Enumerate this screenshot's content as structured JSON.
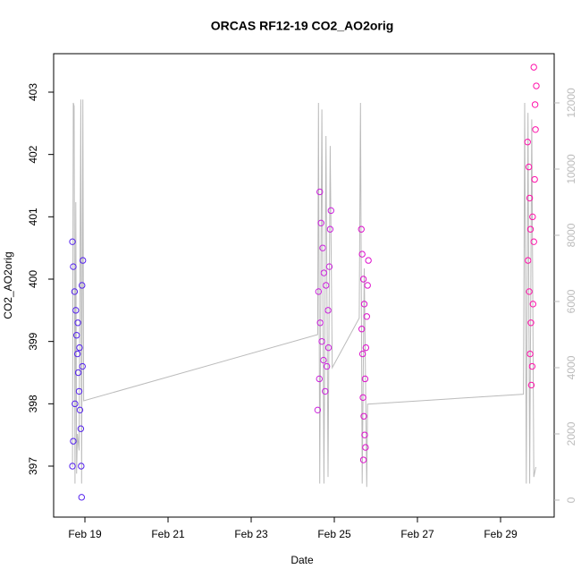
{
  "chart_data": {
    "type": "scatter",
    "title": "ORCAS RF12-19 CO2_AO2orig",
    "xlabel": "Date",
    "ylabel": "CO2_AO2orig",
    "xlim": [
      18.247,
      30.29
    ],
    "ylim": [
      396.182,
      403.617
    ],
    "y2lim": [
      -514,
      13486
    ],
    "xticks": [
      {
        "value": 19,
        "label": "Feb 19"
      },
      {
        "value": 21,
        "label": "Feb 21"
      },
      {
        "value": 23,
        "label": "Feb 23"
      },
      {
        "value": 25,
        "label": "Feb 25"
      },
      {
        "value": 27,
        "label": "Feb 27"
      },
      {
        "value": 29,
        "label": "Feb 29"
      }
    ],
    "yticks": [
      397,
      398,
      399,
      400,
      401,
      402,
      403
    ],
    "y2ticks": [
      0,
      2000,
      4000,
      6000,
      8000,
      10000,
      12000
    ],
    "y2color": "#bbbbbb",
    "x": [
      18.7,
      18.72,
      18.75,
      18.78,
      18.8,
      18.82,
      18.84,
      18.86,
      18.88,
      18.7,
      18.72,
      18.9,
      18.93,
      18.95,
      18.92,
      18.87,
      18.83,
      18.76,
      18.94,
      18.91,
      24.65,
      24.68,
      24.72,
      24.75,
      24.62,
      24.66,
      24.7,
      24.74,
      24.64,
      24.6,
      24.78,
      24.82,
      24.85,
      24.88,
      24.9,
      24.92,
      24.8,
      24.86,
      25.65,
      25.67,
      25.7,
      25.72,
      25.66,
      25.68,
      25.74,
      25.69,
      25.71,
      25.73,
      25.7,
      25.76,
      25.78,
      25.8,
      25.82,
      25.75,
      29.65,
      29.68,
      29.7,
      29.72,
      29.66,
      29.69,
      29.73,
      29.71,
      29.74,
      29.76,
      29.78,
      29.8,
      29.82,
      29.84,
      29.86,
      29.8,
      29.83,
      29.77
    ],
    "values": [
      400.6,
      400.2,
      399.8,
      399.5,
      399.1,
      398.8,
      398.5,
      398.2,
      397.9,
      397.0,
      397.4,
      397.6,
      399.9,
      400.3,
      396.5,
      398.9,
      399.3,
      398.0,
      398.6,
      397.0,
      401.4,
      400.9,
      400.5,
      400.1,
      399.8,
      399.3,
      399.0,
      398.7,
      398.4,
      397.9,
      398.2,
      398.6,
      399.5,
      400.2,
      400.8,
      401.1,
      399.9,
      398.9,
      400.8,
      400.4,
      400.0,
      399.6,
      399.2,
      398.8,
      398.4,
      398.1,
      397.8,
      397.5,
      397.1,
      398.9,
      399.4,
      399.9,
      400.3,
      397.3,
      402.2,
      401.8,
      401.3,
      400.8,
      400.3,
      399.8,
      399.3,
      398.8,
      398.3,
      398.6,
      399.6,
      400.6,
      401.6,
      402.4,
      403.1,
      403.4,
      402.8,
      401.0
    ],
    "colors": [
      "#5522ee",
      "#5522ee",
      "#5522ee",
      "#5522ee",
      "#5522ee",
      "#5522ee",
      "#5522ee",
      "#5522ee",
      "#5522ee",
      "#5522ee",
      "#5522ee",
      "#5522ee",
      "#5522ee",
      "#5522ee",
      "#5522ee",
      "#5522ee",
      "#5522ee",
      "#5522ee",
      "#5522ee",
      "#5522ee",
      "#cc22dd",
      "#cc22dd",
      "#cc22dd",
      "#cc22dd",
      "#cc22dd",
      "#cc22dd",
      "#cc22dd",
      "#cc22dd",
      "#cc22dd",
      "#cc22dd",
      "#cc22dd",
      "#cc22dd",
      "#cc22dd",
      "#cc22dd",
      "#cc22dd",
      "#cc22dd",
      "#cc22dd",
      "#cc22dd",
      "#dd11cc",
      "#dd11cc",
      "#dd11cc",
      "#dd11cc",
      "#dd11cc",
      "#dd11cc",
      "#dd11cc",
      "#dd11cc",
      "#dd11cc",
      "#dd11cc",
      "#dd11cc",
      "#dd11cc",
      "#dd11cc",
      "#dd11cc",
      "#dd11cc",
      "#dd11cc",
      "#ff11aa",
      "#ff11aa",
      "#ff11aa",
      "#ff11aa",
      "#ff11aa",
      "#ff11aa",
      "#ff11aa",
      "#ff11aa",
      "#ff11aa",
      "#ff11aa",
      "#ff11aa",
      "#ff11aa",
      "#ff11aa",
      "#ff11aa",
      "#ff11aa",
      "#ff11aa",
      "#ff11aa",
      "#ff11aa"
    ],
    "line": {
      "axis": "y2",
      "color": "#bbbbbb",
      "x": [
        18.7,
        18.72,
        18.74,
        18.76,
        18.78,
        18.8,
        18.82,
        18.86,
        18.9,
        18.92,
        18.95,
        18.97,
        24.6,
        24.62,
        24.65,
        24.7,
        24.75,
        24.8,
        24.85,
        24.9,
        24.95,
        25.6,
        25.63,
        25.67,
        25.72,
        25.78,
        25.8,
        29.55,
        29.58,
        29.62,
        29.66,
        29.7,
        29.75,
        29.8,
        29.85
      ],
      "values": [
        1000,
        12000,
        11900,
        500,
        9000,
        800,
        2000,
        1500,
        12100,
        500,
        12100,
        3000,
        5000,
        12000,
        500,
        11800,
        500,
        11000,
        700,
        10700,
        4000,
        5500,
        12000,
        500,
        7000,
        400,
        2900,
        3200,
        12000,
        500,
        11700,
        500,
        11500,
        700,
        1000
      ]
    }
  }
}
